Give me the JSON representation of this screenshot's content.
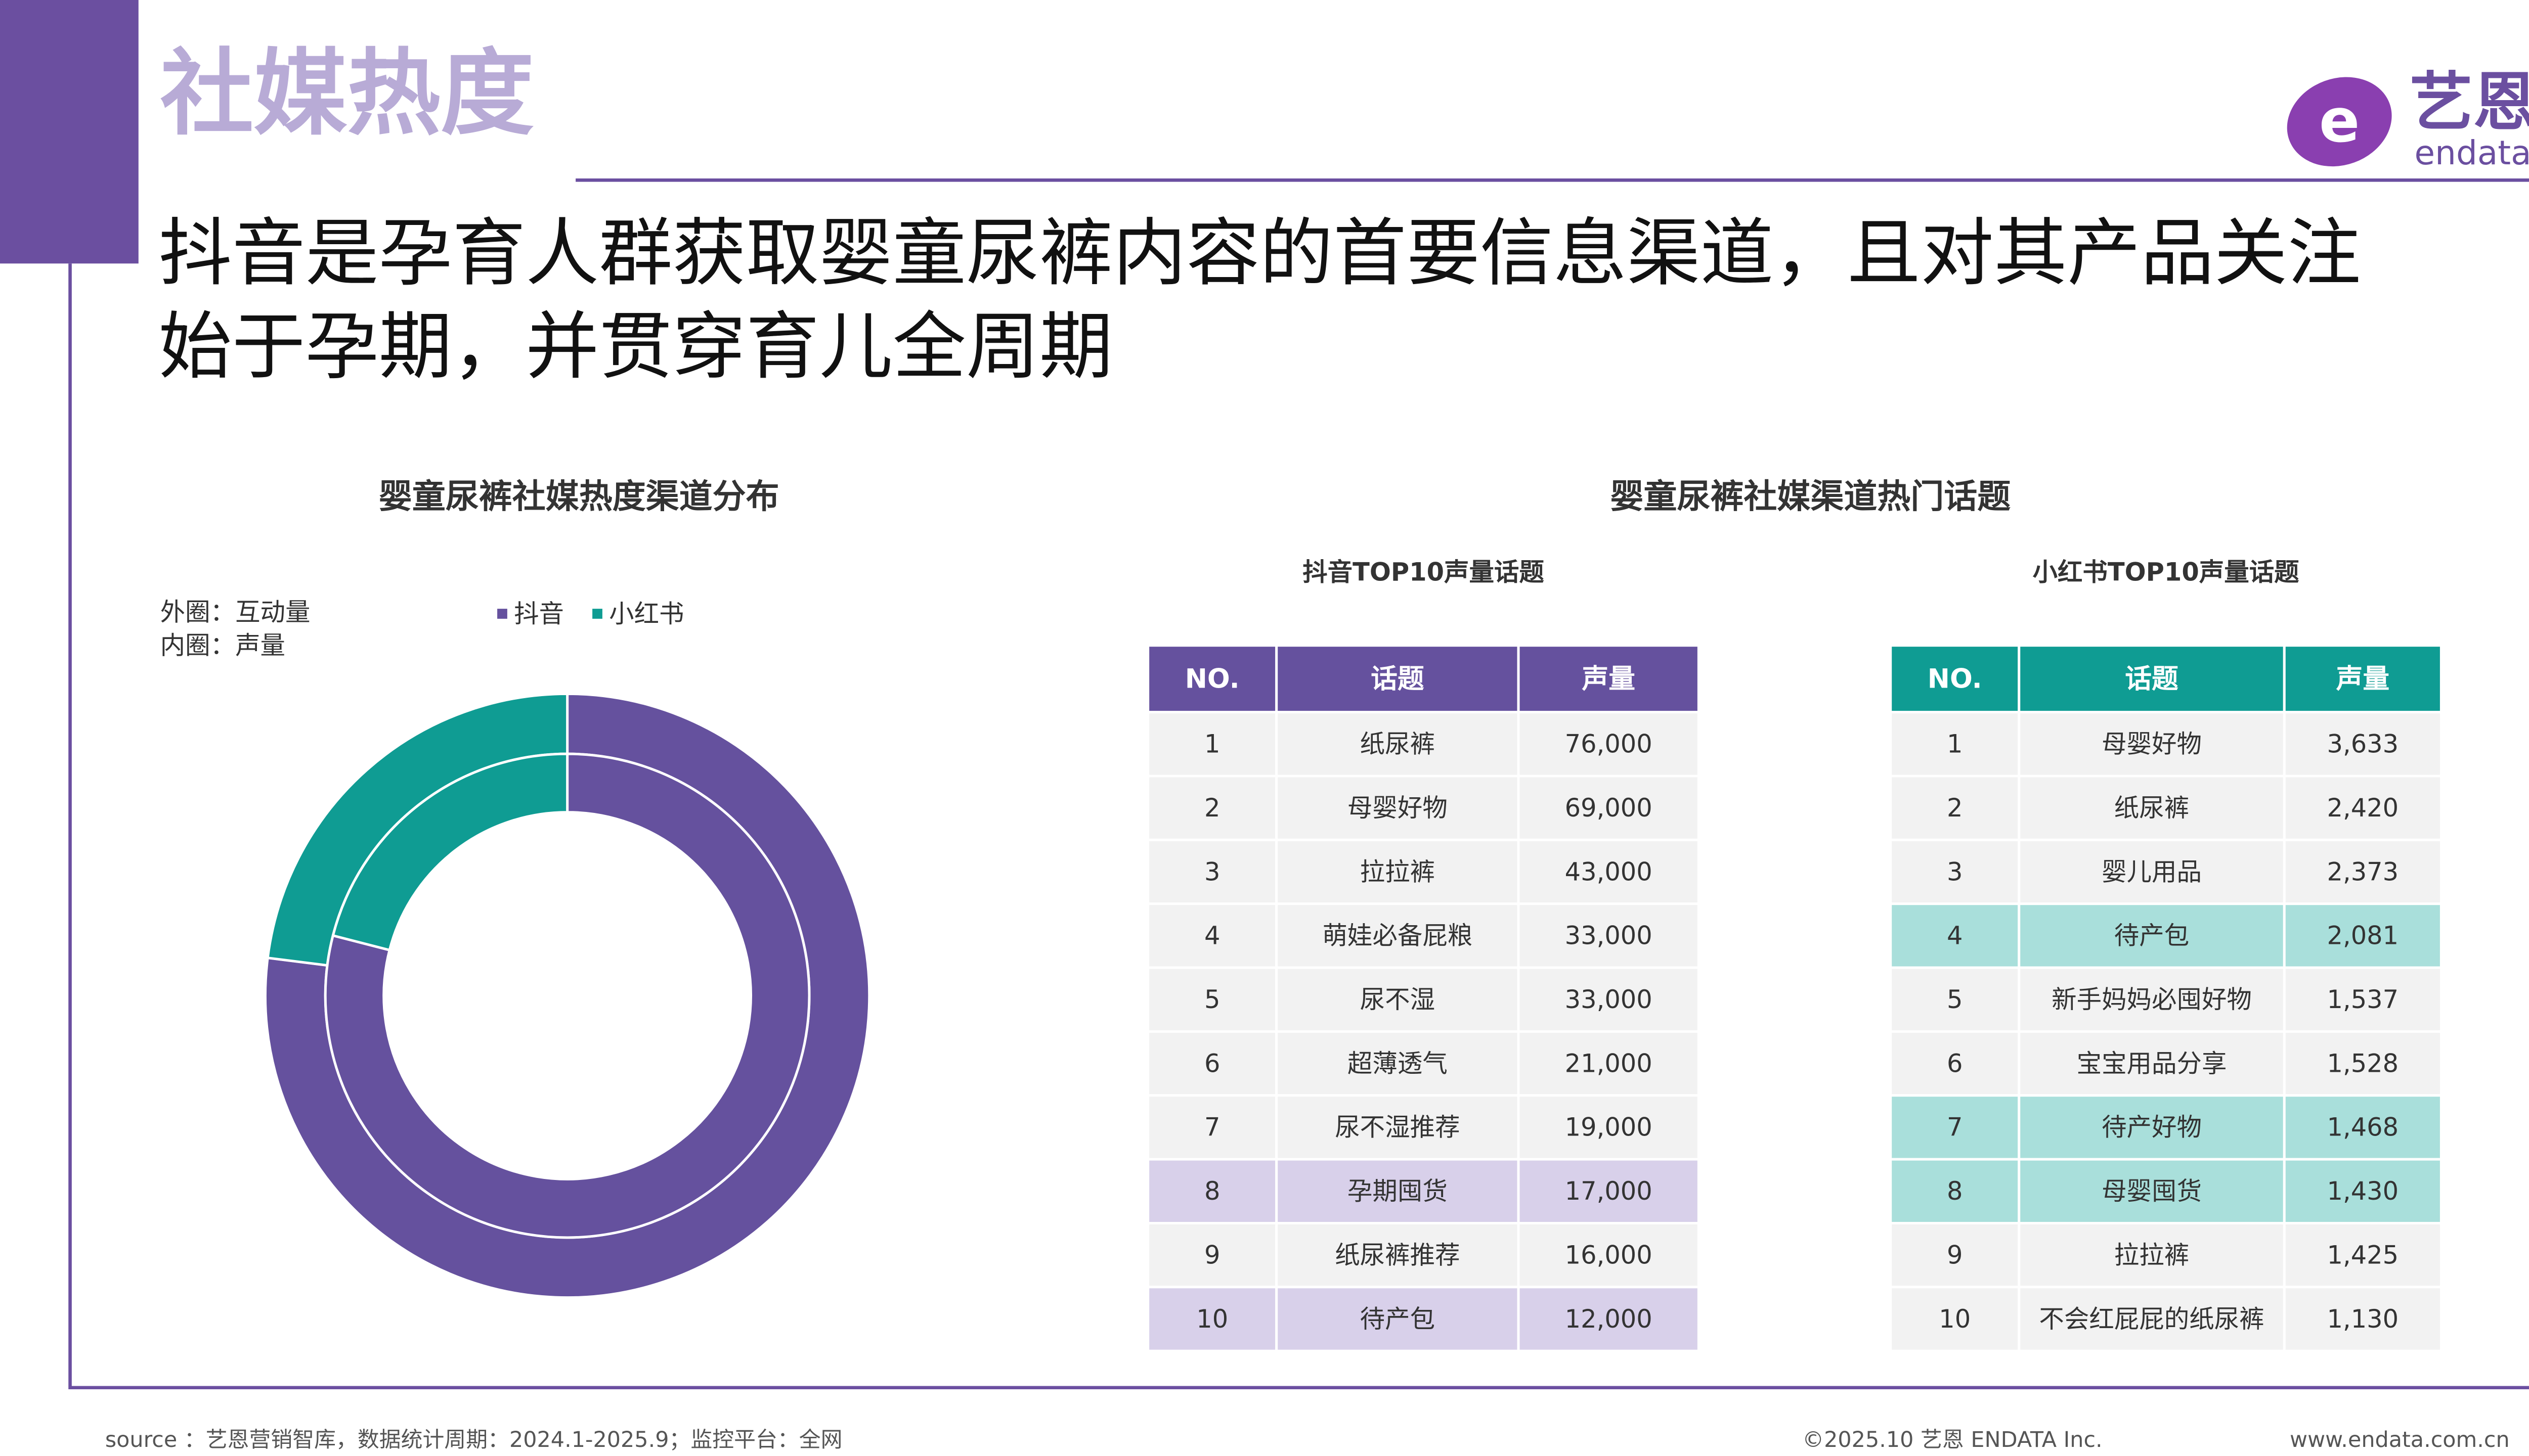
{
  "header": {
    "section": "社媒热度",
    "title_lines": [
      "抖音是孕育人群获取婴童尿裤内容的首要信息渠道，且对其产品关注",
      "始于孕期，并贯穿育儿全周期"
    ],
    "logo_cn": "艺恩",
    "logo_en": "endata"
  },
  "chart_data": {
    "type": "donut",
    "title": "婴童尿裤社媒热度渠道分布",
    "notes": [
      "外圈：互动量",
      "内圈：声量"
    ],
    "categories": [
      "抖音",
      "小红书"
    ],
    "colors": [
      "#65519e",
      "#0f9c93"
    ],
    "series": [
      {
        "values": [
          77,
          23
        ]
      },
      {
        "values": [
          79,
          21
        ]
      }
    ]
  },
  "tables_title": "婴童尿裤社媒渠道热门话题",
  "tables": [
    {
      "title": "抖音TOP10声量话题",
      "color": "#65519e",
      "highlight_color": "#d8d0ea",
      "header": [
        "NO.",
        "话题",
        "声量"
      ],
      "highlight_rows": [
        7,
        9
      ],
      "rows": [
        [
          "1",
          "纸尿裤",
          "76,000"
        ],
        [
          "2",
          "母婴好物",
          "69,000"
        ],
        [
          "3",
          "拉拉裤",
          "43,000"
        ],
        [
          "4",
          "萌娃必备屁粮",
          "33,000"
        ],
        [
          "5",
          "尿不湿",
          "33,000"
        ],
        [
          "6",
          "超薄透气",
          "21,000"
        ],
        [
          "7",
          "尿不湿推荐",
          "19,000"
        ],
        [
          "8",
          "孕期囤货",
          "17,000"
        ],
        [
          "9",
          "纸尿裤推荐",
          "16,000"
        ],
        [
          "10",
          "待产包",
          "12,000"
        ]
      ]
    },
    {
      "title": "小红书TOP10声量话题",
      "color": "#0f9c93",
      "highlight_color": "#a9dfdb",
      "header": [
        "NO.",
        "话题",
        "声量"
      ],
      "highlight_rows": [
        3,
        6,
        7
      ],
      "rows": [
        [
          "1",
          "母婴好物",
          "3,633"
        ],
        [
          "2",
          "纸尿裤",
          "2,420"
        ],
        [
          "3",
          "婴儿用品",
          "2,373"
        ],
        [
          "4",
          "待产包",
          "2,081"
        ],
        [
          "5",
          "新手妈妈必囤好物",
          "1,537"
        ],
        [
          "6",
          "宝宝用品分享",
          "1,528"
        ],
        [
          "7",
          "待产好物",
          "1,468"
        ],
        [
          "8",
          "母婴囤货",
          "1,430"
        ],
        [
          "9",
          "拉拉裤",
          "1,425"
        ],
        [
          "10",
          "不会红屁屁的纸尿裤",
          "1,130"
        ]
      ]
    }
  ],
  "footer": {
    "source": "source ：艺恩营销智库，数据统计周期：2024.1-2025.9；监控平台：全网",
    "copyright": "©2025.10  艺恩 ENDATA Inc.",
    "url": "www.endata.com.cn"
  }
}
